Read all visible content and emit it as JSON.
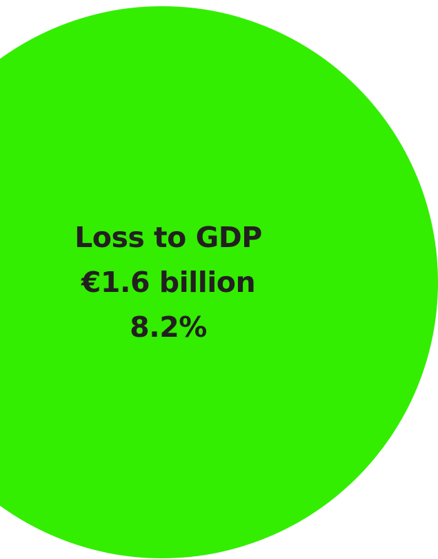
{
  "colors": {
    "circle": "#33ee00",
    "text": "#231f20",
    "background": "#ffffff"
  },
  "label": {
    "title": "Loss to GDP",
    "amount": "€1.6 billion",
    "percent": "8.2%"
  }
}
